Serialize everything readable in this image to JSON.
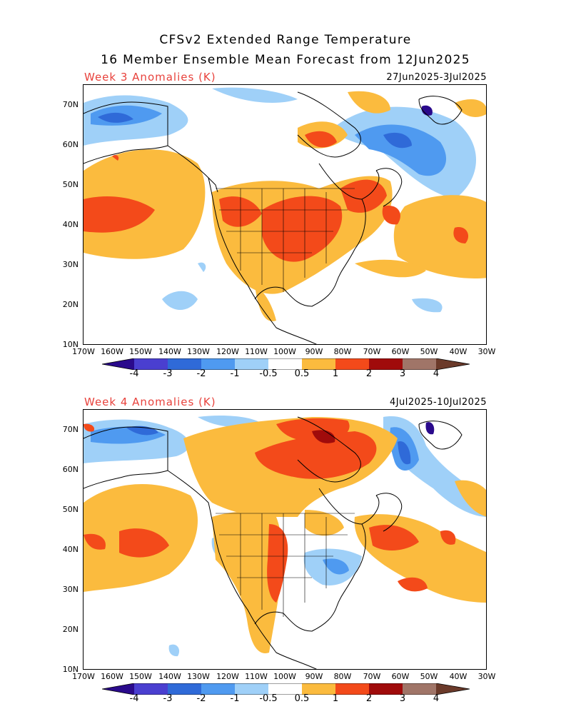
{
  "header": {
    "title_line1": "CFSv2 Extended Range Temperature",
    "title_line2": "16 Member Ensemble Mean Forecast from 12Jun2025"
  },
  "panels": [
    {
      "week_label": "Week 3 Anomalies (K)",
      "date_range": "27Jun2025-3Jul2025"
    },
    {
      "week_label": "Week 4 Anomalies (K)",
      "date_range": "4Jul2025-10Jul2025"
    }
  ],
  "axes": {
    "lat_labels": [
      "70N",
      "60N",
      "50N",
      "40N",
      "30N",
      "20N",
      "10N"
    ],
    "lon_labels": [
      "170W",
      "160W",
      "150W",
      "140W",
      "130W",
      "120W",
      "110W",
      "100W",
      "90W",
      "80W",
      "70W",
      "60W",
      "50W",
      "40W",
      "30W"
    ]
  },
  "colorbar": {
    "labels": [
      "-4",
      "-3",
      "-2",
      "-1",
      "-0.5",
      "0.5",
      "1",
      "2",
      "3",
      "4"
    ],
    "colors": [
      "#2a0a8c",
      "#4a3fd0",
      "#2f6ad8",
      "#4f9af0",
      "#9fd0f8",
      "#ffffff",
      "#fbbb3e",
      "#f34a1a",
      "#a00b0b",
      "#a07568",
      "#6b3a2a"
    ]
  },
  "colors": {
    "anomaly_warm_light": "#fbbb3e",
    "anomaly_warm": "#f34a1a",
    "anomaly_warm_dark": "#a00b0b",
    "anomaly_cool_light": "#9fd0f8",
    "anomaly_cool": "#4f9af0",
    "anomaly_cool_mid": "#2f6ad8",
    "anomaly_cool_dark": "#4a3fd0",
    "week_label": "#e8423c"
  }
}
